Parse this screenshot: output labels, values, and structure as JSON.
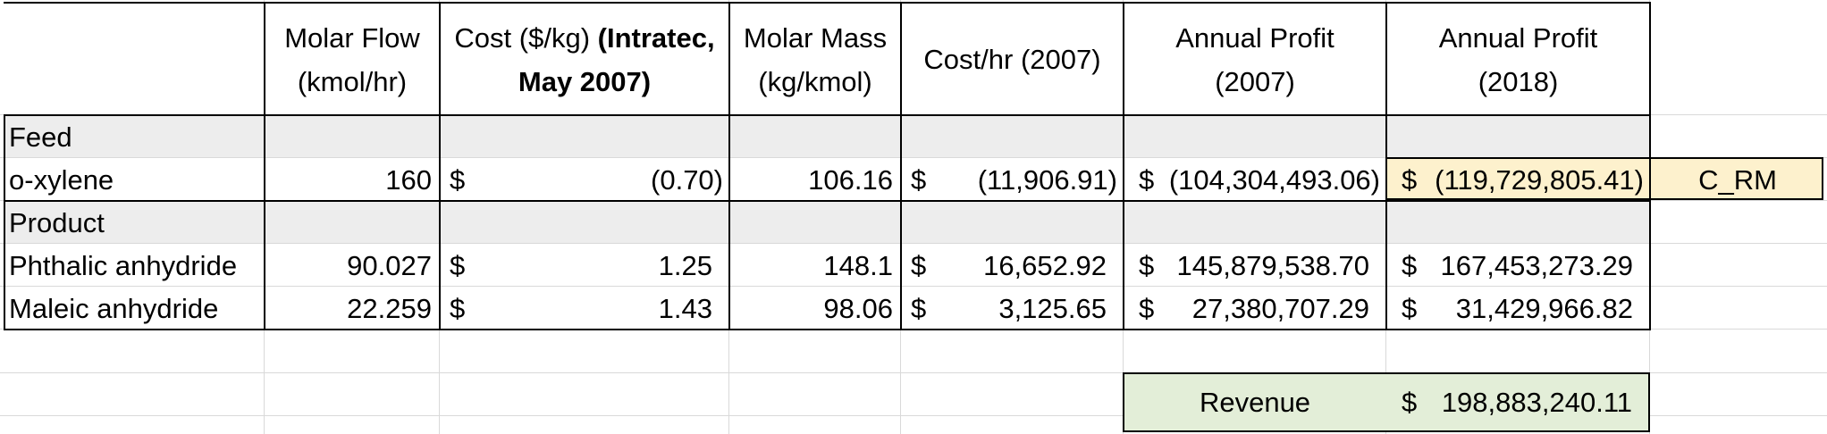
{
  "sheet": {
    "headers": {
      "molar_flow": [
        "Molar Flow",
        "(kmol/hr)"
      ],
      "cost_line1": "Cost ($/kg) ",
      "cost_line1_bold": "(Intratec,",
      "cost_line2": "May 2007)",
      "molar_mass": [
        "Molar Mass",
        "(kg/kmol)"
      ],
      "cost_hr": "Cost/hr (2007)",
      "profit_2007": [
        "Annual Profit",
        "(2007)"
      ],
      "profit_2018": [
        "Annual Profit",
        "(2018)"
      ]
    },
    "sections": {
      "feed": "Feed",
      "product": "Product"
    },
    "rows": [
      {
        "name": "o-xylene",
        "molar_flow": "160",
        "cost_sym": "$",
        "cost": "(0.70)",
        "molar_mass": "106.16",
        "cost_hr_sym": "$",
        "cost_hr": "(11,906.91)",
        "profit_2007_sym": "$",
        "profit_2007": "(104,304,493.06)",
        "profit_2018_sym": "$",
        "profit_2018": "(119,729,805.41)",
        "note": "C_RM"
      },
      {
        "name": "Phthalic anhydride",
        "molar_flow": "90.027",
        "cost_sym": "$",
        "cost": "1.25",
        "molar_mass": "148.1",
        "cost_hr_sym": "$",
        "cost_hr": "16,652.92",
        "profit_2007_sym": "$",
        "profit_2007": "145,879,538.70",
        "profit_2018_sym": "$",
        "profit_2018": "167,453,273.29"
      },
      {
        "name": "Maleic anhydride",
        "molar_flow": "22.259",
        "cost_sym": "$",
        "cost": "1.43",
        "molar_mass": "98.06",
        "cost_hr_sym": "$",
        "cost_hr": "3,125.65",
        "profit_2007_sym": "$",
        "profit_2007": "27,380,707.29",
        "profit_2018_sym": "$",
        "profit_2018": "31,429,966.82"
      }
    ],
    "revenue": {
      "label": "Revenue",
      "sym": "$",
      "value": "198,883,240.11"
    },
    "colors": {
      "highlight_yellow": "#fdf1cd",
      "highlight_green": "#e3eed8",
      "band_gray": "#ededed",
      "gridline": "#d9d9d9"
    }
  }
}
